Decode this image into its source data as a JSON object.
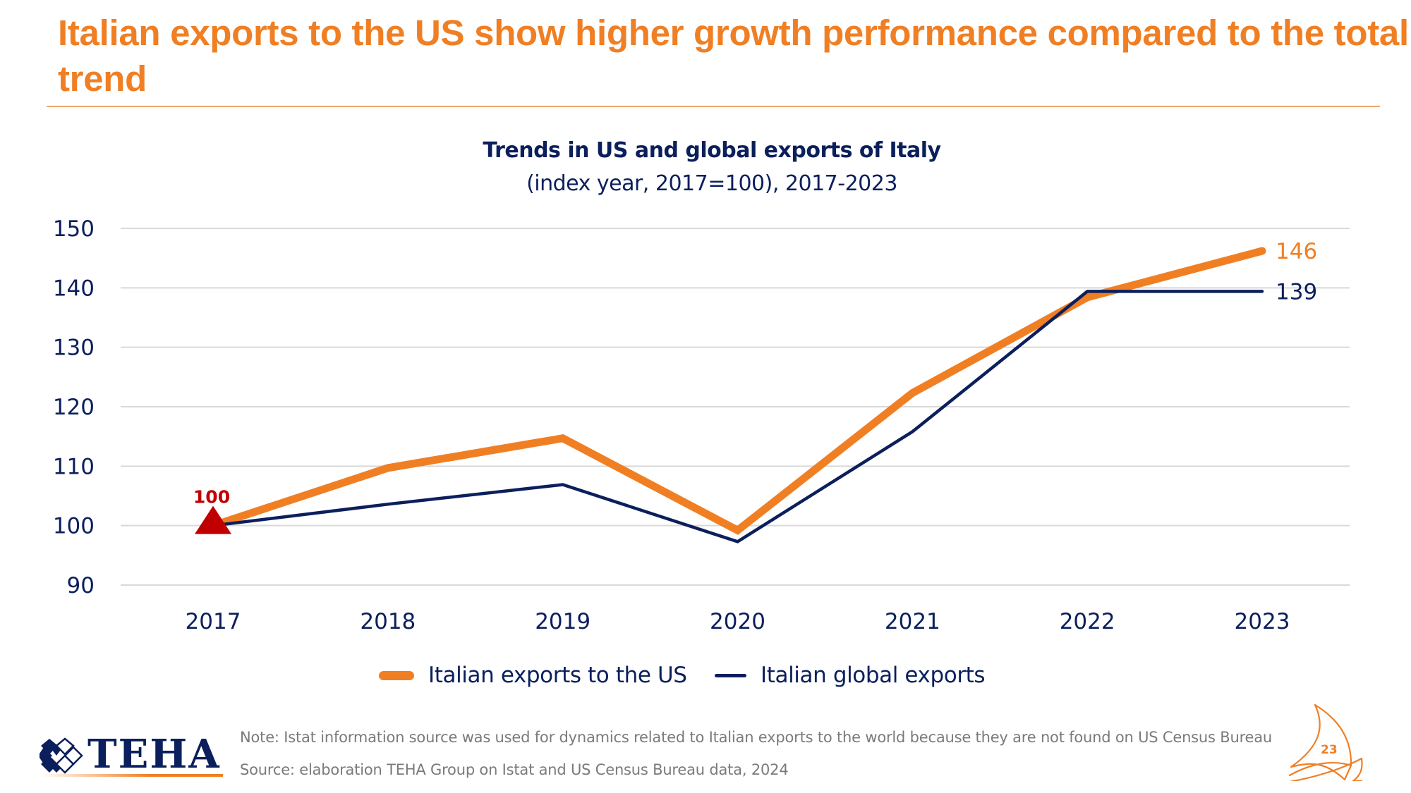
{
  "slide": {
    "title": "Italian exports to the US show higher growth performance compared to the total trend",
    "page_number": "23",
    "note": "Note: Istat information source was used for dynamics related to Italian exports to the world because they are not found on US Census Bureau",
    "source": "Source: elaboration TEHA Group on Istat and US Census Bureau data, 2024",
    "logo_text": "TEHA"
  },
  "colors": {
    "accent_orange": "#F07F24",
    "navy": "#0B1F5C",
    "marker_red": "#C00000",
    "grid": "#D9D9D9",
    "footer_grey": "#7A7A7A"
  },
  "chart_data": {
    "type": "line",
    "title": "Trends in US and global exports of Italy",
    "subtitle": "(index year, 2017=100), 2017-2023",
    "xlabel": "",
    "ylabel": "",
    "x": [
      "2017",
      "2018",
      "2019",
      "2020",
      "2021",
      "2022",
      "2023"
    ],
    "ylim": [
      90,
      150
    ],
    "yticks": [
      90,
      100,
      110,
      120,
      130,
      140,
      150
    ],
    "grid": true,
    "legend_position": "bottom-center",
    "series": [
      {
        "name": "Italian exports to the US",
        "color": "#F07F24",
        "values": [
          100,
          109.7,
          114.7,
          99.2,
          122.3,
          138.4,
          146.2
        ],
        "end_label": "146"
      },
      {
        "name": "Italian global exports",
        "color": "#0B1F5C",
        "values": [
          100,
          103.6,
          106.9,
          97.3,
          115.8,
          139.4,
          139.4
        ],
        "end_label": "139"
      }
    ],
    "annotations": [
      {
        "x": "2017",
        "y": 100,
        "text": "100",
        "marker": "triangle",
        "color": "#C00000"
      }
    ]
  }
}
